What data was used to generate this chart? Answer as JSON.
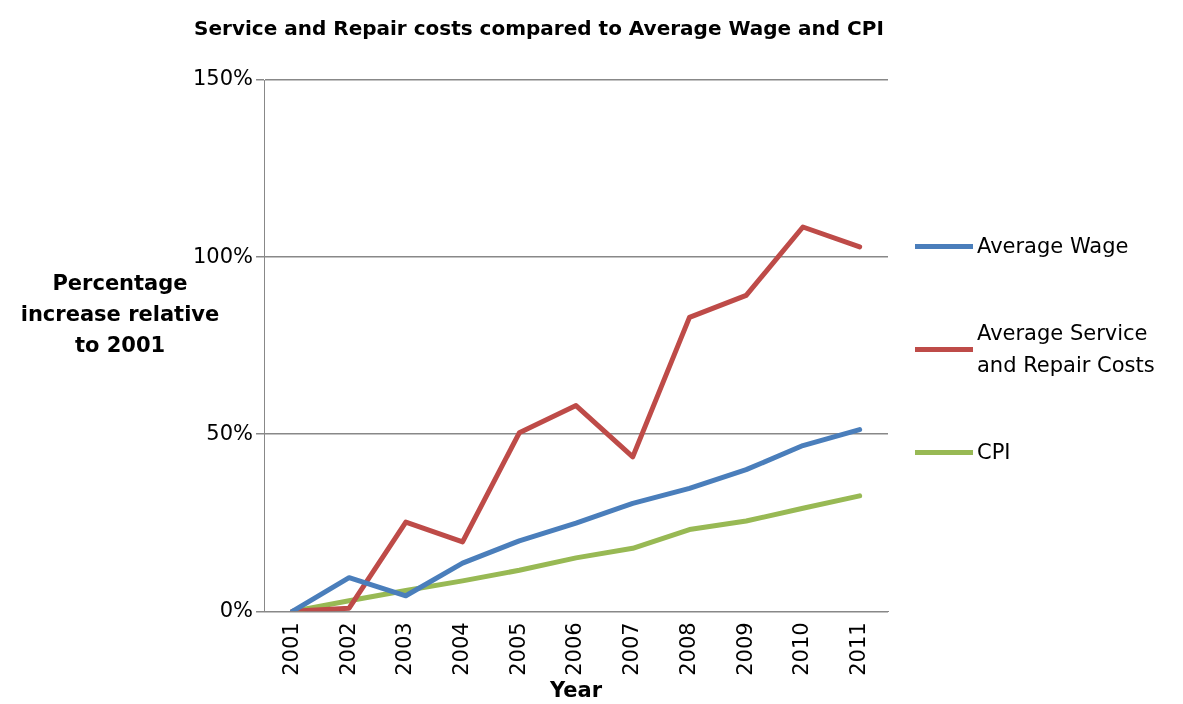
{
  "chart_data": {
    "type": "line",
    "title": "Service and Repair costs compared to Average Wage and CPI",
    "xlabel": "Year",
    "ylabel": "Percentage increase relative to 2001",
    "categories": [
      "2001",
      "2002",
      "2003",
      "2004",
      "2005",
      "2006",
      "2007",
      "2008",
      "2009",
      "2010",
      "2011"
    ],
    "series": [
      {
        "name": "Average Wage",
        "color": "#4a7ebb",
        "values": [
          0,
          9.5,
          4.4,
          13.6,
          19.9,
          24.9,
          30.5,
          34.7,
          40,
          46.8,
          51.3
        ]
      },
      {
        "name": "Average Service and Repair Costs",
        "color": "#be4b48",
        "values": [
          0,
          0.9,
          25.2,
          19.6,
          50.4,
          58.1,
          43.6,
          83,
          89.2,
          108.5,
          102.9
        ]
      },
      {
        "name": "CPI",
        "color": "#98b954",
        "values": [
          0,
          3,
          5.9,
          8.6,
          11.6,
          15.1,
          17.8,
          23.1,
          25.5,
          29.1,
          32.6
        ]
      }
    ],
    "ylim": [
      0,
      150
    ],
    "yticks": [
      {
        "value": 0,
        "label": "0%"
      },
      {
        "value": 50,
        "label": "50%"
      },
      {
        "value": 100,
        "label": "100%"
      },
      {
        "value": 150,
        "label": "150%"
      }
    ],
    "grid": "y",
    "legend": "right",
    "marker": "none",
    "line_style": "solid"
  }
}
